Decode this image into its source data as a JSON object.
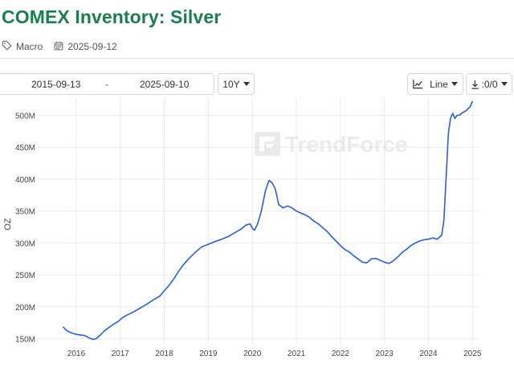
{
  "header": {
    "title": "COMEX Inventory: Silver",
    "category": "Macro",
    "date": "2025-09-12"
  },
  "toolbar": {
    "start_date": "2015-09-13",
    "date_separator": "-",
    "end_date": "2025-09-10",
    "range_label": "10Y",
    "chart_type_label": "Line",
    "download_label": ":0/0"
  },
  "icons": {
    "category": "tag-icon",
    "date": "calendar-icon",
    "chart_type": "line-chart-icon",
    "download": "download-icon"
  },
  "watermark": "TrendForce",
  "colors": {
    "title": "#1a7f4e",
    "line": "#2a5fd6",
    "grid": "#ebebeb",
    "watermark": "#dcdcdc"
  },
  "chart_data": {
    "type": "line",
    "title": "",
    "xlabel": "",
    "ylabel": "OZ",
    "xlim": [
      2015.09,
      2025.14
    ],
    "ylim": [
      142,
      527
    ],
    "yticks": [
      150,
      200,
      250,
      300,
      350,
      400,
      450,
      500
    ],
    "ytick_labels": [
      "150M",
      "200M",
      "250M",
      "300M",
      "350M",
      "400M",
      "450M",
      "500M"
    ],
    "xticks": [
      2016,
      2017,
      2018,
      2019,
      2020,
      2021,
      2022,
      2023,
      2024,
      2025
    ],
    "xtick_labels": [
      "2016",
      "2017",
      "2018",
      "2019",
      "2020",
      "2021",
      "2022",
      "2023",
      "2024",
      "2025"
    ],
    "grid": true,
    "series": [
      {
        "values_unit": "M oz",
        "x": [
          2015.7,
          2015.78,
          2015.9,
          2016.0,
          2016.1,
          2016.2,
          2016.3,
          2016.38,
          2016.45,
          2016.55,
          2016.65,
          2016.75,
          2016.85,
          2016.95,
          2017.05,
          2017.15,
          2017.3,
          2017.45,
          2017.6,
          2017.75,
          2017.9,
          2018.0,
          2018.1,
          2018.2,
          2018.3,
          2018.4,
          2018.55,
          2018.7,
          2018.85,
          2019.0,
          2019.15,
          2019.3,
          2019.45,
          2019.55,
          2019.65,
          2019.75,
          2019.85,
          2019.95,
          2020.0,
          2020.05,
          2020.12,
          2020.2,
          2020.3,
          2020.38,
          2020.45,
          2020.52,
          2020.6,
          2020.7,
          2020.8,
          2020.9,
          2021.0,
          2021.1,
          2021.2,
          2021.3,
          2021.4,
          2021.5,
          2021.6,
          2021.7,
          2021.8,
          2021.9,
          2022.0,
          2022.1,
          2022.2,
          2022.3,
          2022.4,
          2022.5,
          2022.6,
          2022.7,
          2022.8,
          2022.9,
          2023.0,
          2023.1,
          2023.2,
          2023.3,
          2023.4,
          2023.5,
          2023.6,
          2023.7,
          2023.8,
          2023.9,
          2024.0,
          2024.1,
          2024.2,
          2024.3,
          2024.35,
          2024.4,
          2024.45,
          2024.5,
          2024.55,
          2024.6,
          2024.65,
          2024.7,
          2024.75,
          2024.8,
          2024.85,
          2024.9,
          2024.95,
          2025.0
        ],
        "values": [
          169,
          163,
          159,
          157,
          156,
          155,
          151,
          149,
          150,
          156,
          163,
          168,
          173,
          177,
          183,
          187,
          192,
          198,
          204,
          211,
          217,
          225,
          233,
          242,
          253,
          263,
          275,
          285,
          294,
          298,
          302,
          306,
          310,
          314,
          318,
          322,
          328,
          330,
          323,
          320,
          330,
          349,
          382,
          398,
          394,
          385,
          360,
          355,
          358,
          355,
          350,
          347,
          344,
          340,
          334,
          330,
          324,
          318,
          310,
          303,
          296,
          290,
          286,
          280,
          275,
          270,
          269,
          275,
          276,
          273,
          270,
          268,
          272,
          278,
          285,
          290,
          296,
          300,
          303,
          305,
          306,
          308,
          306,
          312,
          335,
          400,
          470,
          495,
          503,
          495,
          500,
          500,
          503,
          505,
          507,
          510,
          514,
          522
        ]
      }
    ]
  }
}
